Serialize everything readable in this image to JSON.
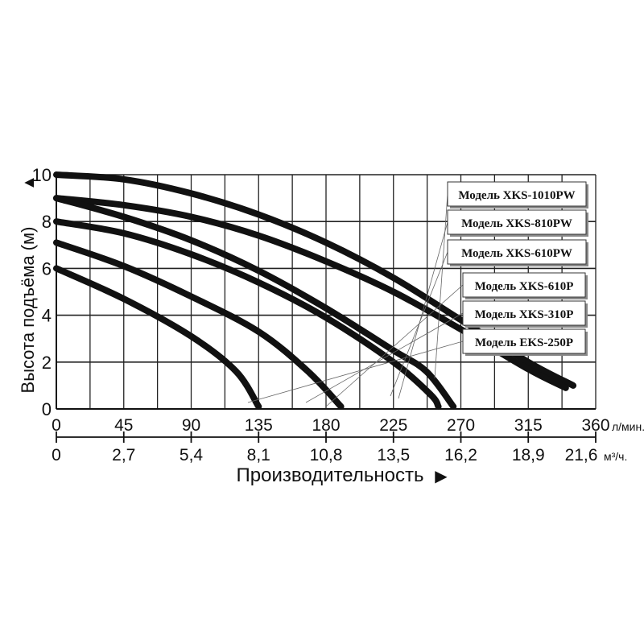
{
  "chart_data": {
    "type": "line",
    "ylabel": "Высота подъёма (м)",
    "ylabel_arrow": "▲",
    "xlabel": "Производительность",
    "xlabel_arrow": "▶",
    "x_unit_primary": "л/мин.",
    "x_unit_secondary": "м³/ч.",
    "xlim": [
      0,
      360
    ],
    "ylim": [
      0,
      10
    ],
    "x_ticks_primary": [
      "0",
      "45",
      "90",
      "135",
      "180",
      "225",
      "270",
      "315",
      "360"
    ],
    "x_ticks_secondary": [
      "0",
      "2,7",
      "5,4",
      "8,1",
      "10,8",
      "13,5",
      "16,2",
      "18,9",
      "21,6"
    ],
    "y_ticks": [
      "0",
      "2",
      "4",
      "6",
      "8",
      "10"
    ],
    "grid": true,
    "legend_placement": "right",
    "series": [
      {
        "name": "Модель XKS-1010PW",
        "points": [
          [
            0,
            10
          ],
          [
            45,
            9.8
          ],
          [
            90,
            9.2
          ],
          [
            135,
            8.3
          ],
          [
            180,
            7.1
          ],
          [
            225,
            5.6
          ],
          [
            270,
            3.8
          ],
          [
            315,
            2.0
          ],
          [
            345,
            1.0
          ]
        ]
      },
      {
        "name": "Модель XKS-810PW",
        "points": [
          [
            0,
            9.0
          ],
          [
            45,
            8.7
          ],
          [
            90,
            8.2
          ],
          [
            135,
            7.4
          ],
          [
            180,
            6.3
          ],
          [
            225,
            5.0
          ],
          [
            270,
            3.4
          ],
          [
            315,
            1.7
          ],
          [
            340,
            0.9
          ]
        ]
      },
      {
        "name": "Модель XKS-610PW",
        "points": [
          [
            0,
            9.0
          ],
          [
            45,
            8.2
          ],
          [
            90,
            7.2
          ],
          [
            135,
            5.9
          ],
          [
            180,
            4.3
          ],
          [
            225,
            2.5
          ],
          [
            247,
            1.6
          ],
          [
            265,
            0.1
          ]
        ]
      },
      {
        "name": "Модель XKS-610P",
        "points": [
          [
            0,
            8.0
          ],
          [
            45,
            7.5
          ],
          [
            90,
            6.6
          ],
          [
            135,
            5.4
          ],
          [
            180,
            3.9
          ],
          [
            225,
            2.0
          ],
          [
            250,
            0.6
          ],
          [
            255,
            0.1
          ]
        ]
      },
      {
        "name": "Модель XKS-310P",
        "points": [
          [
            0,
            7.1
          ],
          [
            45,
            6.1
          ],
          [
            90,
            4.8
          ],
          [
            135,
            3.3
          ],
          [
            168,
            1.6
          ],
          [
            190,
            0.1
          ]
        ]
      },
      {
        "name": "Модель EKS-250P",
        "points": [
          [
            0,
            6.0
          ],
          [
            45,
            4.7
          ],
          [
            90,
            3.1
          ],
          [
            120,
            1.6
          ],
          [
            135,
            0.1
          ]
        ]
      }
    ]
  }
}
